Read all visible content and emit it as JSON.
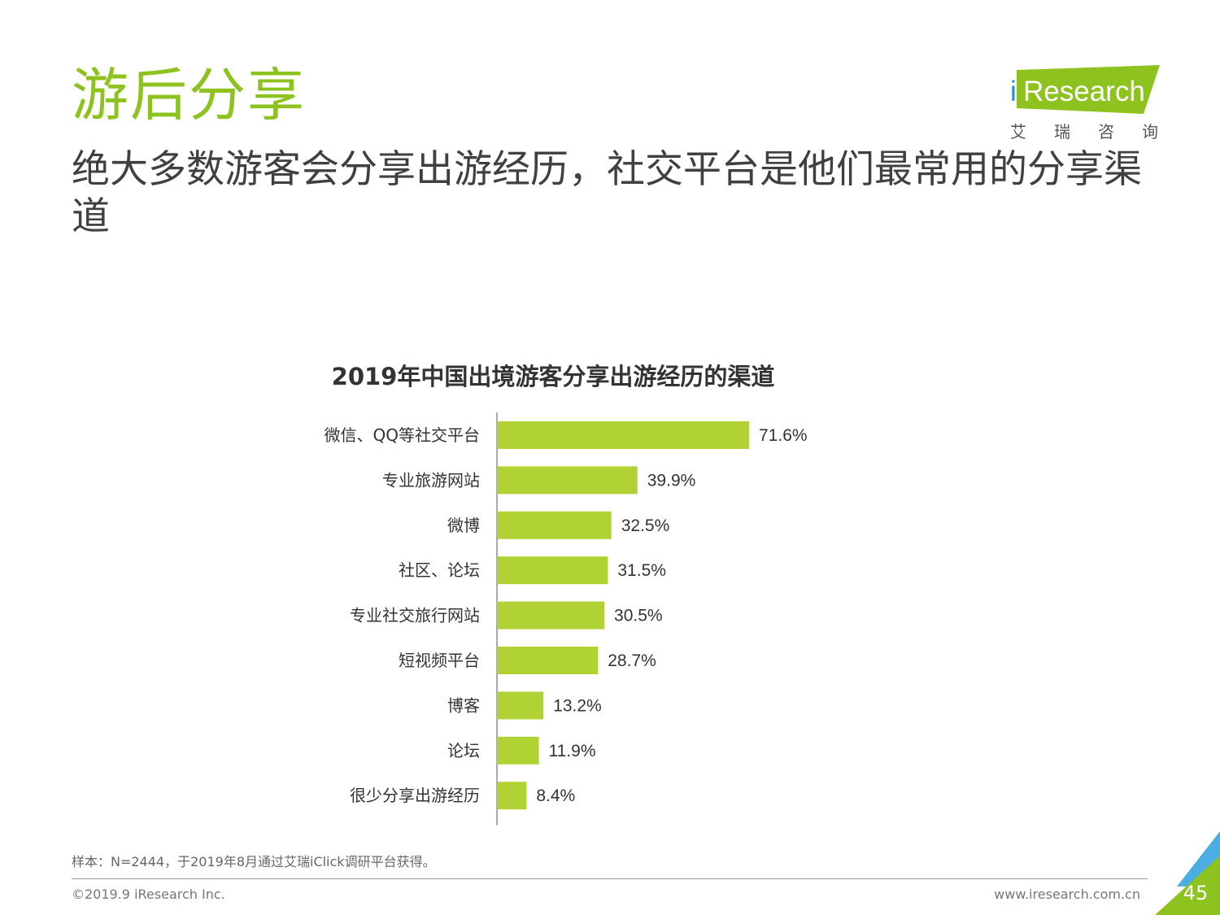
{
  "header": {
    "title": "游后分享",
    "subtitle": "绝大多数游客会分享出游经历，社交平台是他们最常用的分享渠道"
  },
  "logo": {
    "mark": "i",
    "brand": "Research",
    "cn": "艾瑞咨询"
  },
  "chart_data": {
    "type": "bar",
    "orientation": "horizontal",
    "title": "2019年中国出境游客分享出游经历的渠道",
    "categories": [
      "微信、QQ等社交平台",
      "专业旅游网站",
      "微博",
      "社区、论坛",
      "专业社交旅行网站",
      "短视频平台",
      "博客",
      "论坛",
      "很少分享出游经历"
    ],
    "values": [
      71.6,
      39.9,
      32.5,
      31.5,
      30.5,
      28.7,
      13.2,
      11.9,
      8.4
    ],
    "value_labels": [
      "71.6%",
      "39.9%",
      "32.5%",
      "31.5%",
      "30.5%",
      "28.7%",
      "13.2%",
      "11.9%",
      "8.4%"
    ],
    "unit": "%",
    "xlim": [
      0,
      100
    ],
    "grid": false,
    "legend": "none",
    "bar_color": "#b1d235"
  },
  "footer": {
    "note": "样本：N=2444，于2019年8月通过艾瑞iClick调研平台获得。",
    "copyright": "©2019.9 iResearch Inc.",
    "url": "www.iresearch.com.cn",
    "page": "45"
  },
  "colors": {
    "accent": "#8dc21f",
    "brand_blue": "#2b8ccd",
    "corner_blue": "#4aaee3"
  }
}
